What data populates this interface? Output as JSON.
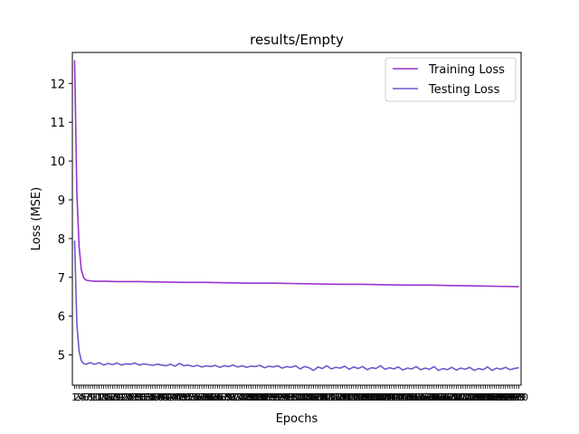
{
  "chart_data": {
    "type": "line",
    "title": "results/Empty",
    "xlabel": "Epochs",
    "ylabel": "Loss (MSE)",
    "xlim": [
      0,
      201
    ],
    "ylim": [
      4.22,
      12.8
    ],
    "yticks": [
      5,
      6,
      7,
      8,
      9,
      10,
      11,
      12
    ],
    "xticks": [
      1,
      2,
      3,
      4,
      5,
      6,
      7,
      8,
      9,
      10,
      11,
      12,
      13,
      14,
      15,
      16,
      17,
      18,
      19,
      20,
      21,
      22,
      23,
      24,
      25,
      26,
      27,
      28,
      29,
      30,
      31,
      32,
      33,
      34,
      35,
      36,
      37,
      38,
      39,
      40,
      41,
      42,
      43,
      44,
      45,
      46,
      47,
      48,
      49,
      50,
      51,
      52,
      53,
      54,
      55,
      56,
      57,
      58,
      59,
      60,
      61,
      62,
      63,
      64,
      65,
      66,
      67,
      68,
      69,
      70,
      71,
      72,
      73,
      74,
      75,
      76,
      77,
      78,
      79,
      80,
      81,
      82,
      83,
      84,
      85,
      86,
      87,
      88,
      89,
      90,
      91,
      92,
      93,
      94,
      95,
      96,
      97,
      98,
      99,
      100,
      101,
      102,
      103,
      104,
      105,
      106,
      107,
      108,
      109,
      110,
      111,
      112,
      113,
      114,
      115,
      116,
      117,
      118,
      119,
      120,
      121,
      122,
      123,
      124,
      125,
      126,
      127,
      128,
      129,
      130,
      131,
      132,
      133,
      134,
      135,
      136,
      137,
      138,
      139,
      140,
      141,
      142,
      143,
      144,
      145,
      146,
      147,
      148,
      149,
      150,
      151,
      152,
      153,
      154,
      155,
      156,
      157,
      158,
      159,
      160,
      161,
      162,
      163,
      164,
      165,
      166,
      167,
      168,
      169,
      170,
      171,
      172,
      173,
      174,
      175,
      176,
      177,
      178,
      179,
      180,
      181,
      182,
      183,
      184,
      185,
      186,
      187,
      188,
      189,
      190,
      191,
      192,
      193,
      194,
      195,
      196,
      197,
      198,
      199,
      200
    ],
    "legend_position": "top-right",
    "grid": false,
    "series": [
      {
        "name": "Training Loss",
        "color": "#9932CC",
        "x": [
          1,
          2,
          3,
          4,
          5,
          6,
          8,
          10,
          15,
          20,
          30,
          40,
          50,
          60,
          70,
          80,
          90,
          100,
          110,
          120,
          130,
          140,
          150,
          160,
          170,
          180,
          190,
          200
        ],
        "values": [
          12.6,
          9.2,
          7.8,
          7.2,
          7.0,
          6.93,
          6.91,
          6.9,
          6.9,
          6.89,
          6.89,
          6.88,
          6.87,
          6.87,
          6.86,
          6.85,
          6.85,
          6.84,
          6.83,
          6.82,
          6.82,
          6.81,
          6.8,
          6.8,
          6.79,
          6.78,
          6.77,
          6.76
        ]
      },
      {
        "name": "Testing Loss",
        "color": "#6A5ACD",
        "x": [
          1,
          2,
          3,
          4,
          5,
          6,
          8,
          10,
          12,
          14,
          16,
          18,
          20,
          22,
          24,
          26,
          28,
          30,
          32,
          34,
          36,
          38,
          40,
          42,
          44,
          46,
          48,
          50,
          52,
          54,
          56,
          58,
          60,
          62,
          64,
          66,
          68,
          70,
          72,
          74,
          76,
          78,
          80,
          82,
          84,
          86,
          88,
          90,
          92,
          94,
          96,
          98,
          100,
          102,
          104,
          106,
          108,
          110,
          112,
          114,
          116,
          118,
          120,
          122,
          124,
          126,
          128,
          130,
          132,
          134,
          136,
          138,
          140,
          142,
          144,
          146,
          148,
          150,
          152,
          154,
          156,
          158,
          160,
          162,
          164,
          166,
          168,
          170,
          172,
          174,
          176,
          178,
          180,
          182,
          184,
          186,
          188,
          190,
          192,
          194,
          196,
          198,
          200
        ],
        "values": [
          7.95,
          5.8,
          5.1,
          4.85,
          4.78,
          4.76,
          4.8,
          4.76,
          4.8,
          4.74,
          4.78,
          4.75,
          4.79,
          4.74,
          4.77,
          4.76,
          4.79,
          4.74,
          4.77,
          4.75,
          4.73,
          4.76,
          4.74,
          4.72,
          4.76,
          4.71,
          4.78,
          4.72,
          4.74,
          4.7,
          4.73,
          4.69,
          4.72,
          4.7,
          4.73,
          4.68,
          4.72,
          4.7,
          4.74,
          4.69,
          4.72,
          4.68,
          4.71,
          4.7,
          4.73,
          4.67,
          4.71,
          4.69,
          4.72,
          4.66,
          4.7,
          4.68,
          4.72,
          4.64,
          4.7,
          4.67,
          4.6,
          4.69,
          4.65,
          4.72,
          4.64,
          4.68,
          4.66,
          4.71,
          4.63,
          4.69,
          4.65,
          4.7,
          4.62,
          4.67,
          4.65,
          4.72,
          4.63,
          4.67,
          4.64,
          4.69,
          4.61,
          4.66,
          4.64,
          4.7,
          4.62,
          4.66,
          4.63,
          4.7,
          4.6,
          4.65,
          4.62,
          4.68,
          4.61,
          4.66,
          4.63,
          4.68,
          4.6,
          4.65,
          4.62,
          4.69,
          4.6,
          4.66,
          4.63,
          4.68,
          4.62,
          4.65,
          4.67
        ]
      }
    ]
  }
}
